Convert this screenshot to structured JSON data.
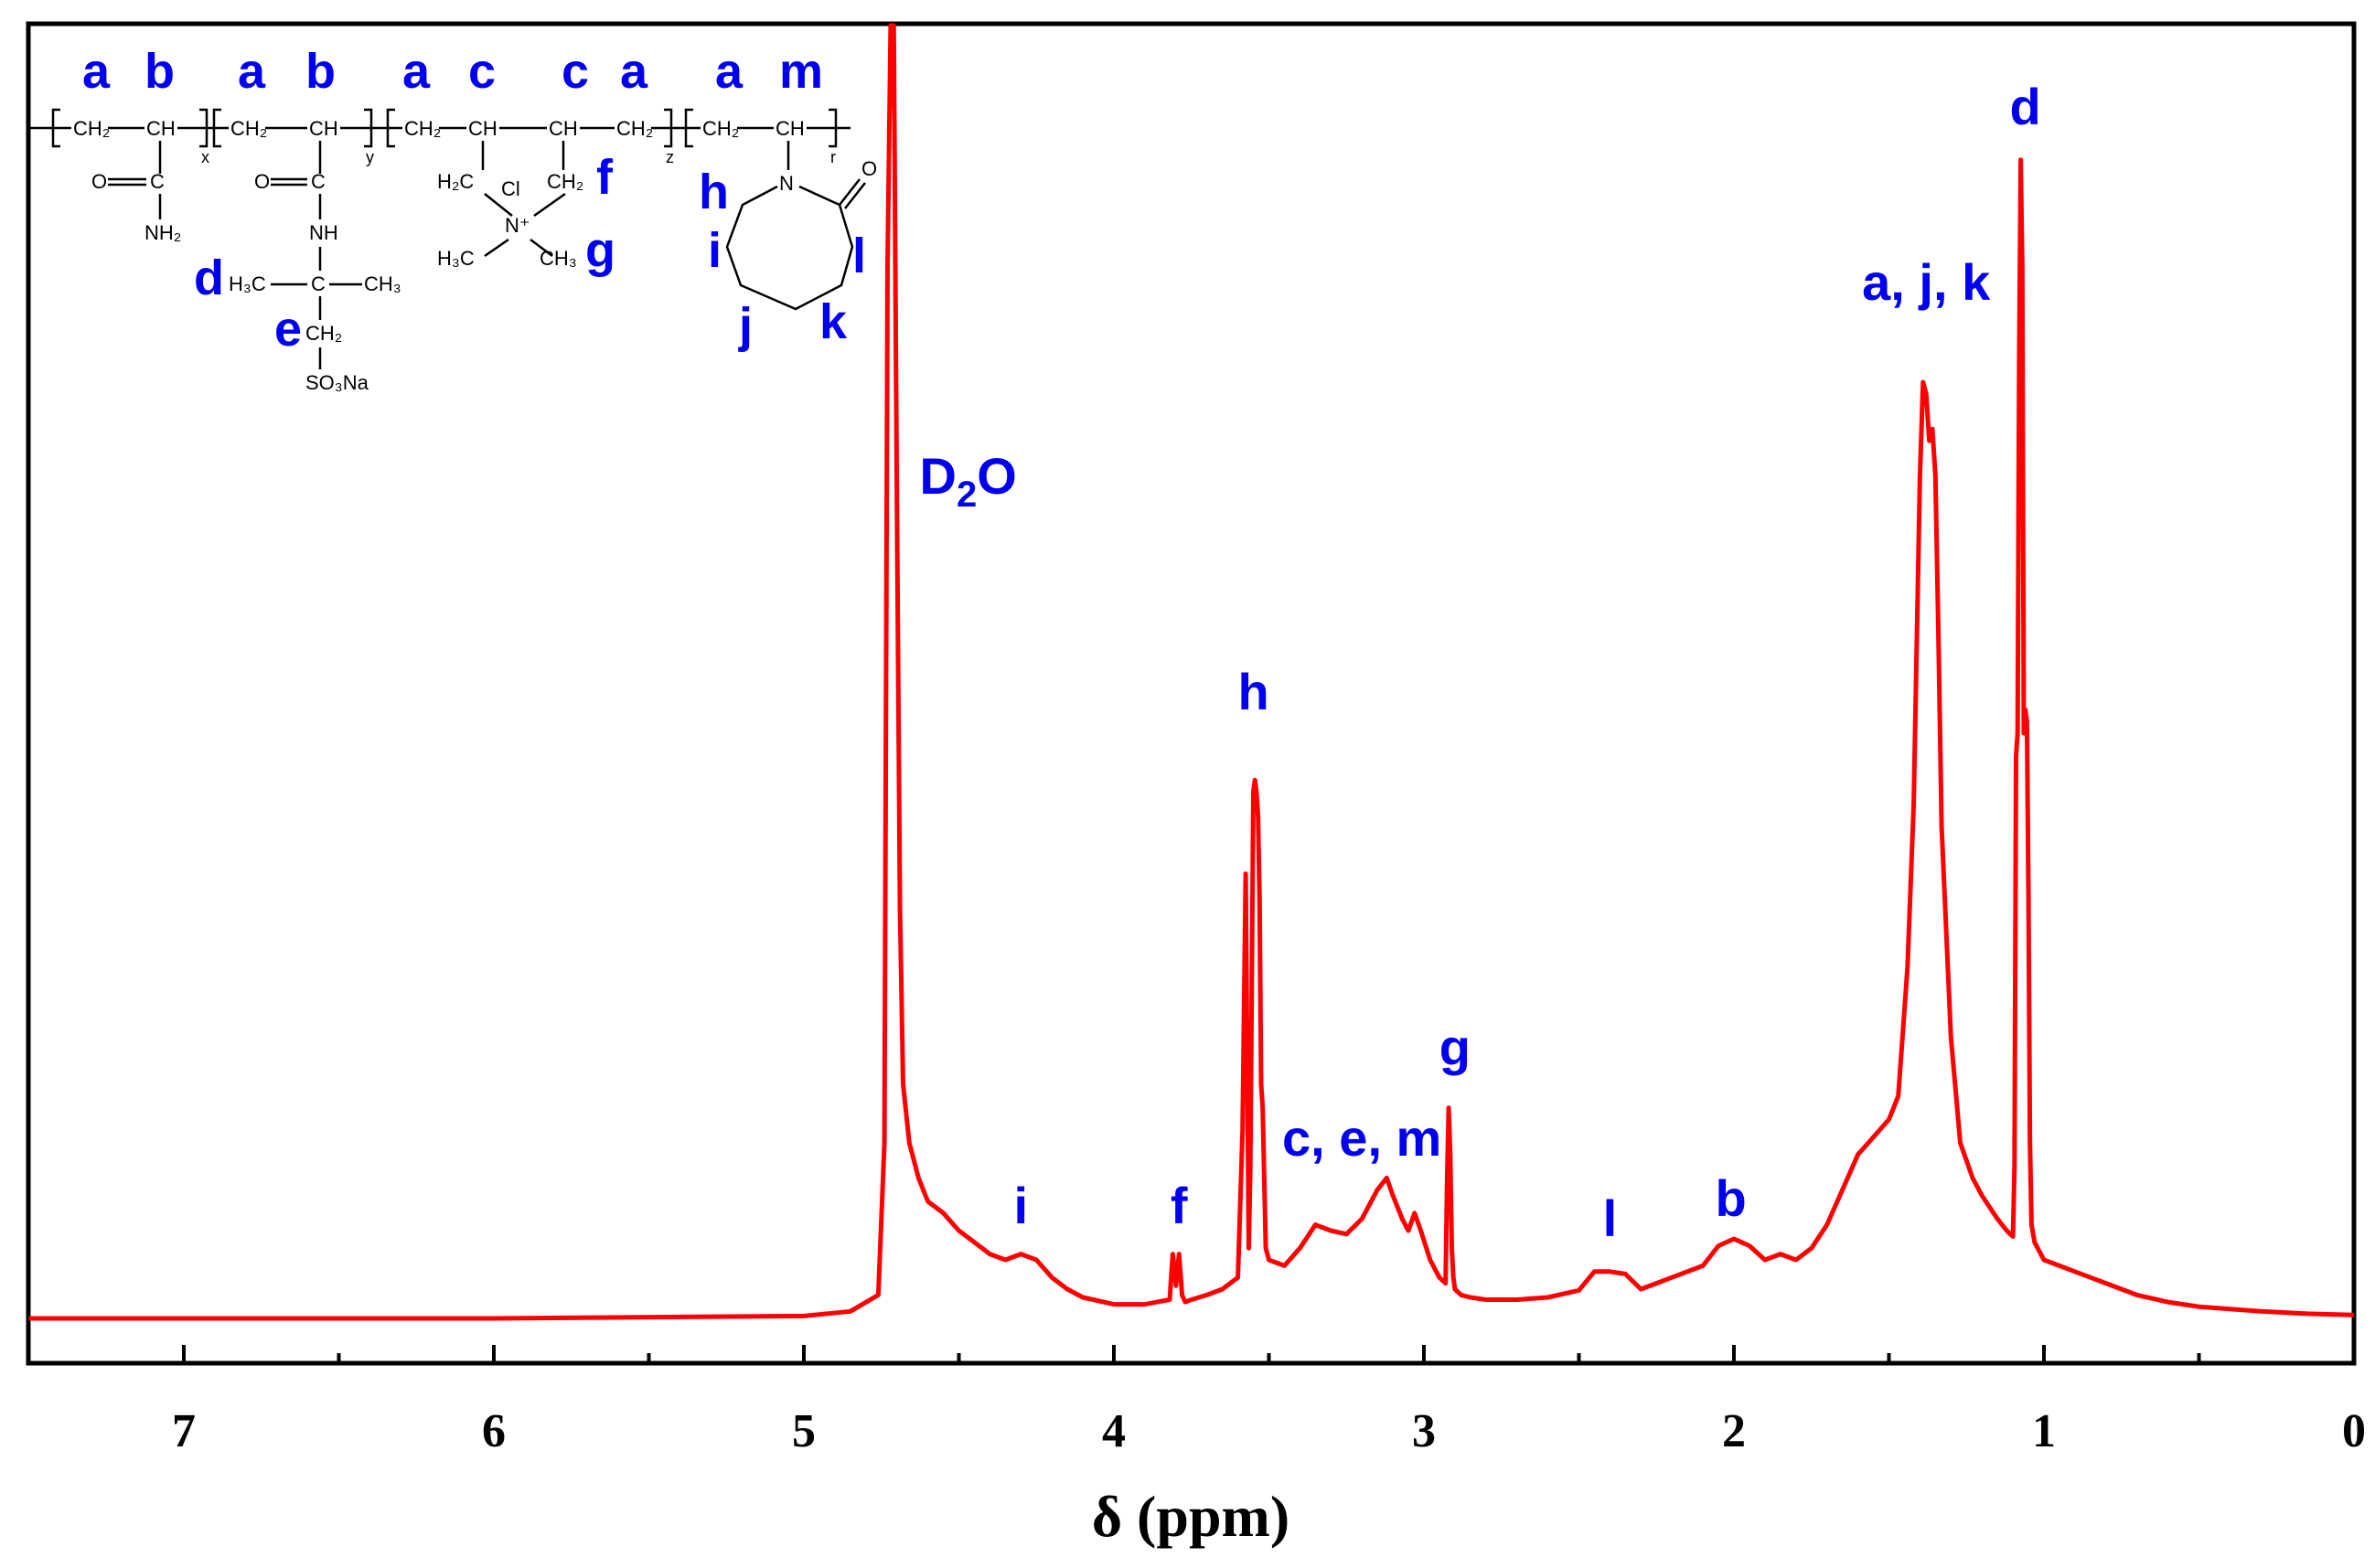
{
  "chart_data": {
    "type": "line",
    "xlabel": "δ (ppm)",
    "ylabel": "",
    "xlim": [
      7.5,
      0
    ],
    "x_reversed": true,
    "grid": false,
    "x_ticks": [
      "7",
      "6",
      "5",
      "4",
      "3",
      "2",
      "1",
      "0"
    ],
    "series": [
      {
        "x": [
          7.5,
          6.0,
          5.0,
          4.85,
          4.76,
          4.74,
          4.73,
          4.72,
          4.71,
          4.7,
          4.69,
          4.68,
          4.66,
          4.63,
          4.6,
          4.55,
          4.5,
          4.45,
          4.4,
          4.35,
          4.3,
          4.25,
          4.2,
          4.15,
          4.1,
          4.0,
          3.9,
          3.82,
          3.81,
          3.8,
          3.79,
          3.78,
          3.77,
          3.75,
          3.7,
          3.65,
          3.6,
          3.585,
          3.575,
          3.565,
          3.56,
          3.55,
          3.545,
          3.54,
          3.535,
          3.53,
          3.525,
          3.52,
          3.51,
          3.5,
          3.45,
          3.4,
          3.35,
          3.3,
          3.25,
          3.2,
          3.15,
          3.12,
          3.1,
          3.07,
          3.05,
          3.03,
          3.01,
          2.98,
          2.95,
          2.93,
          2.925,
          2.92,
          2.915,
          2.91,
          2.905,
          2.9,
          2.88,
          2.85,
          2.8,
          2.7,
          2.6,
          2.5,
          2.45,
          2.4,
          2.35,
          2.3,
          2.25,
          2.2,
          2.1,
          2.05,
          2.0,
          1.95,
          1.9,
          1.85,
          1.8,
          1.75,
          1.7,
          1.65,
          1.6,
          1.55,
          1.5,
          1.47,
          1.44,
          1.42,
          1.4,
          1.39,
          1.38,
          1.37,
          1.36,
          1.35,
          1.34,
          1.33,
          1.3,
          1.27,
          1.23,
          1.2,
          1.15,
          1.12,
          1.1,
          1.095,
          1.09,
          1.085,
          1.08,
          1.075,
          1.07,
          1.065,
          1.06,
          1.055,
          1.05,
          1.045,
          1.04,
          1.03,
          1.0,
          0.95,
          0.9,
          0.8,
          0.7,
          0.6,
          0.5,
          0.3,
          0.15,
          0.0
        ],
        "y": [
          0.0,
          0.0,
          0.002,
          0.006,
          0.02,
          0.15,
          0.9,
          1.2,
          1.2,
          0.7,
          0.35,
          0.2,
          0.15,
          0.12,
          0.1,
          0.09,
          0.075,
          0.065,
          0.055,
          0.05,
          0.055,
          0.05,
          0.035,
          0.025,
          0.018,
          0.012,
          0.012,
          0.016,
          0.055,
          0.028,
          0.055,
          0.02,
          0.014,
          0.016,
          0.02,
          0.025,
          0.035,
          0.16,
          0.38,
          0.06,
          0.13,
          0.45,
          0.46,
          0.45,
          0.43,
          0.36,
          0.2,
          0.18,
          0.06,
          0.05,
          0.045,
          0.06,
          0.08,
          0.075,
          0.072,
          0.085,
          0.11,
          0.12,
          0.105,
          0.085,
          0.075,
          0.09,
          0.075,
          0.05,
          0.035,
          0.03,
          0.12,
          0.18,
          0.14,
          0.06,
          0.035,
          0.025,
          0.02,
          0.018,
          0.016,
          0.016,
          0.018,
          0.024,
          0.04,
          0.04,
          0.038,
          0.025,
          0.03,
          0.035,
          0.045,
          0.062,
          0.068,
          0.062,
          0.05,
          0.055,
          0.05,
          0.06,
          0.08,
          0.11,
          0.14,
          0.155,
          0.17,
          0.19,
          0.3,
          0.44,
          0.72,
          0.8,
          0.79,
          0.75,
          0.76,
          0.72,
          0.58,
          0.42,
          0.24,
          0.15,
          0.12,
          0.105,
          0.085,
          0.075,
          0.07,
          0.13,
          0.48,
          0.5,
          0.82,
          0.99,
          0.9,
          0.5,
          0.52,
          0.51,
          0.36,
          0.15,
          0.08,
          0.065,
          0.05,
          0.045,
          0.04,
          0.03,
          0.02,
          0.014,
          0.01,
          0.006,
          0.004,
          0.003
        ]
      }
    ],
    "annotations": [
      {
        "text": "D2O",
        "x": 4.47
      },
      {
        "text": "i",
        "x": 4.3
      },
      {
        "text": "f",
        "x": 3.79
      },
      {
        "text": "h",
        "x": 3.55
      },
      {
        "text": "c, e, m",
        "x": 3.2
      },
      {
        "text": "g",
        "x": 2.9
      },
      {
        "text": "l",
        "x": 2.4
      },
      {
        "text": "b",
        "x": 2.01
      },
      {
        "text": "a, j, k",
        "x": 1.38
      },
      {
        "text": "d",
        "x": 1.06
      }
    ]
  },
  "structure": {
    "group_letters": [
      "a",
      "b",
      "a",
      "b",
      "a",
      "c",
      "c",
      "a",
      "a",
      "m"
    ],
    "side_letters": {
      "f": "f",
      "g": "g",
      "d": "d",
      "e": "e",
      "h": "h",
      "i": "i",
      "j": "j",
      "k": "k",
      "l": "l"
    },
    "chain_text": [
      "CH₂",
      "CH",
      "CH₂",
      "CH",
      "CH₂",
      "CH",
      "CH",
      "CH₂",
      "CH₂",
      "CH"
    ],
    "subscripts": [
      "x",
      "y",
      "z",
      "r"
    ],
    "atoms": {
      "o1": "O",
      "c1": "C",
      "nh2": "NH₂",
      "o2": "O",
      "c2": "C",
      "nh": "NH",
      "h3c": "H₃C",
      "c3": "C",
      "ch3": "CH₃",
      "ch2": "CH₂",
      "so3na": "SO₃Na",
      "h2c": "H₂C",
      "cl": "Cl",
      "ch2b": "CH₂",
      "nplus": "N⁺",
      "h3cb": "H₃C",
      "ch3b": "CH₃",
      "n_ring": "N",
      "o_ring": "O"
    }
  }
}
